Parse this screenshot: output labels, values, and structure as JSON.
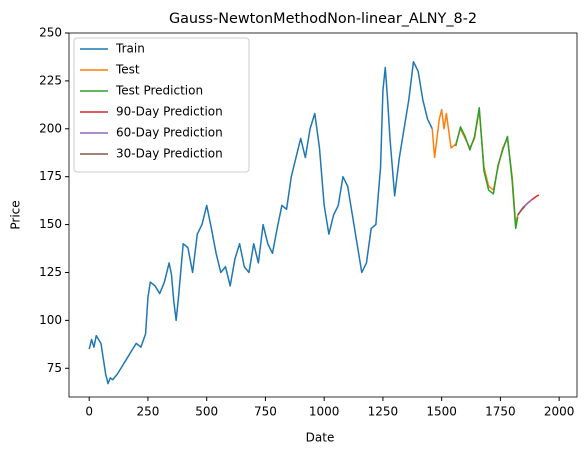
{
  "chart_data": {
    "type": "line",
    "title": "Gauss-NewtonMethodNon-linear_ALNY_8-2",
    "x_label": "Date",
    "y_label": "Price",
    "xlim": [
      -86,
      2076
    ],
    "ylim": [
      60,
      250
    ],
    "xticks": [
      0,
      250,
      500,
      750,
      1000,
      1250,
      1500,
      1750,
      2000
    ],
    "yticks": [
      75,
      100,
      125,
      150,
      175,
      200,
      225,
      250
    ],
    "legend": "upper left",
    "series": [
      {
        "name": "Train",
        "color": "#1f77b4",
        "x": [
          0,
          10,
          20,
          30,
          50,
          60,
          70,
          80,
          90,
          100,
          120,
          140,
          160,
          180,
          200,
          220,
          240,
          250,
          260,
          280,
          300,
          320,
          340,
          350,
          360,
          370,
          380,
          400,
          420,
          440,
          460,
          480,
          500,
          520,
          540,
          560,
          580,
          600,
          620,
          640,
          660,
          680,
          700,
          720,
          740,
          760,
          780,
          800,
          820,
          840,
          860,
          880,
          900,
          920,
          940,
          960,
          980,
          1000,
          1020,
          1040,
          1060,
          1080,
          1100,
          1120,
          1140,
          1160,
          1180,
          1200,
          1220,
          1240,
          1250,
          1260,
          1270,
          1280,
          1300,
          1320,
          1340,
          1360,
          1380,
          1400,
          1420,
          1440,
          1460
        ],
        "values": [
          85,
          90,
          86,
          92,
          88,
          80,
          72,
          67,
          70,
          69,
          72,
          76,
          80,
          84,
          88,
          86,
          93,
          112,
          120,
          118,
          114,
          120,
          130,
          124,
          110,
          100,
          112,
          140,
          138,
          125,
          145,
          150,
          160,
          148,
          135,
          125,
          128,
          118,
          132,
          140,
          128,
          125,
          140,
          130,
          150,
          140,
          135,
          148,
          160,
          158,
          175,
          185,
          195,
          185,
          200,
          208,
          190,
          160,
          145,
          155,
          160,
          175,
          170,
          155,
          140,
          125,
          130,
          148,
          150,
          180,
          220,
          232,
          215,
          195,
          165,
          185,
          200,
          215,
          235,
          230,
          215,
          205,
          200
        ]
      },
      {
        "name": "Test",
        "color": "#ff7f0e",
        "x": [
          1460,
          1470,
          1480,
          1490,
          1500,
          1510,
          1520,
          1540,
          1560,
          1580,
          1600,
          1620,
          1640,
          1660,
          1680,
          1700,
          1720,
          1740,
          1760,
          1780,
          1800,
          1815,
          1824
        ],
        "values": [
          200,
          185,
          195,
          205,
          210,
          200,
          208,
          190,
          192,
          200,
          195,
          190,
          195,
          210,
          180,
          170,
          168,
          180,
          190,
          195,
          175,
          150,
          155
        ]
      },
      {
        "name": "Test Prediction",
        "color": "#2ca02c",
        "x": [
          1560,
          1580,
          1600,
          1620,
          1640,
          1660,
          1680,
          1700,
          1720,
          1740,
          1760,
          1780,
          1800,
          1815,
          1824
        ],
        "values": [
          191,
          201,
          196,
          189,
          196,
          211,
          178,
          168,
          166,
          181,
          189,
          196,
          173,
          148,
          154
        ]
      },
      {
        "name": "90-Day Prediction",
        "color": "#d62728",
        "x": [
          1824,
          1844,
          1864,
          1884,
          1904,
          1914
        ],
        "values": [
          155,
          158.5,
          161,
          163,
          164.8,
          165.5
        ]
      },
      {
        "name": "60-Day Prediction",
        "color": "#9467bd",
        "x": [
          1824,
          1844,
          1864,
          1884
        ],
        "values": [
          155,
          158.5,
          161,
          163
        ]
      },
      {
        "name": "30-Day Prediction",
        "color": "#8c564b",
        "x": [
          1824,
          1839,
          1854
        ],
        "values": [
          155,
          157.5,
          159.5
        ]
      }
    ]
  }
}
